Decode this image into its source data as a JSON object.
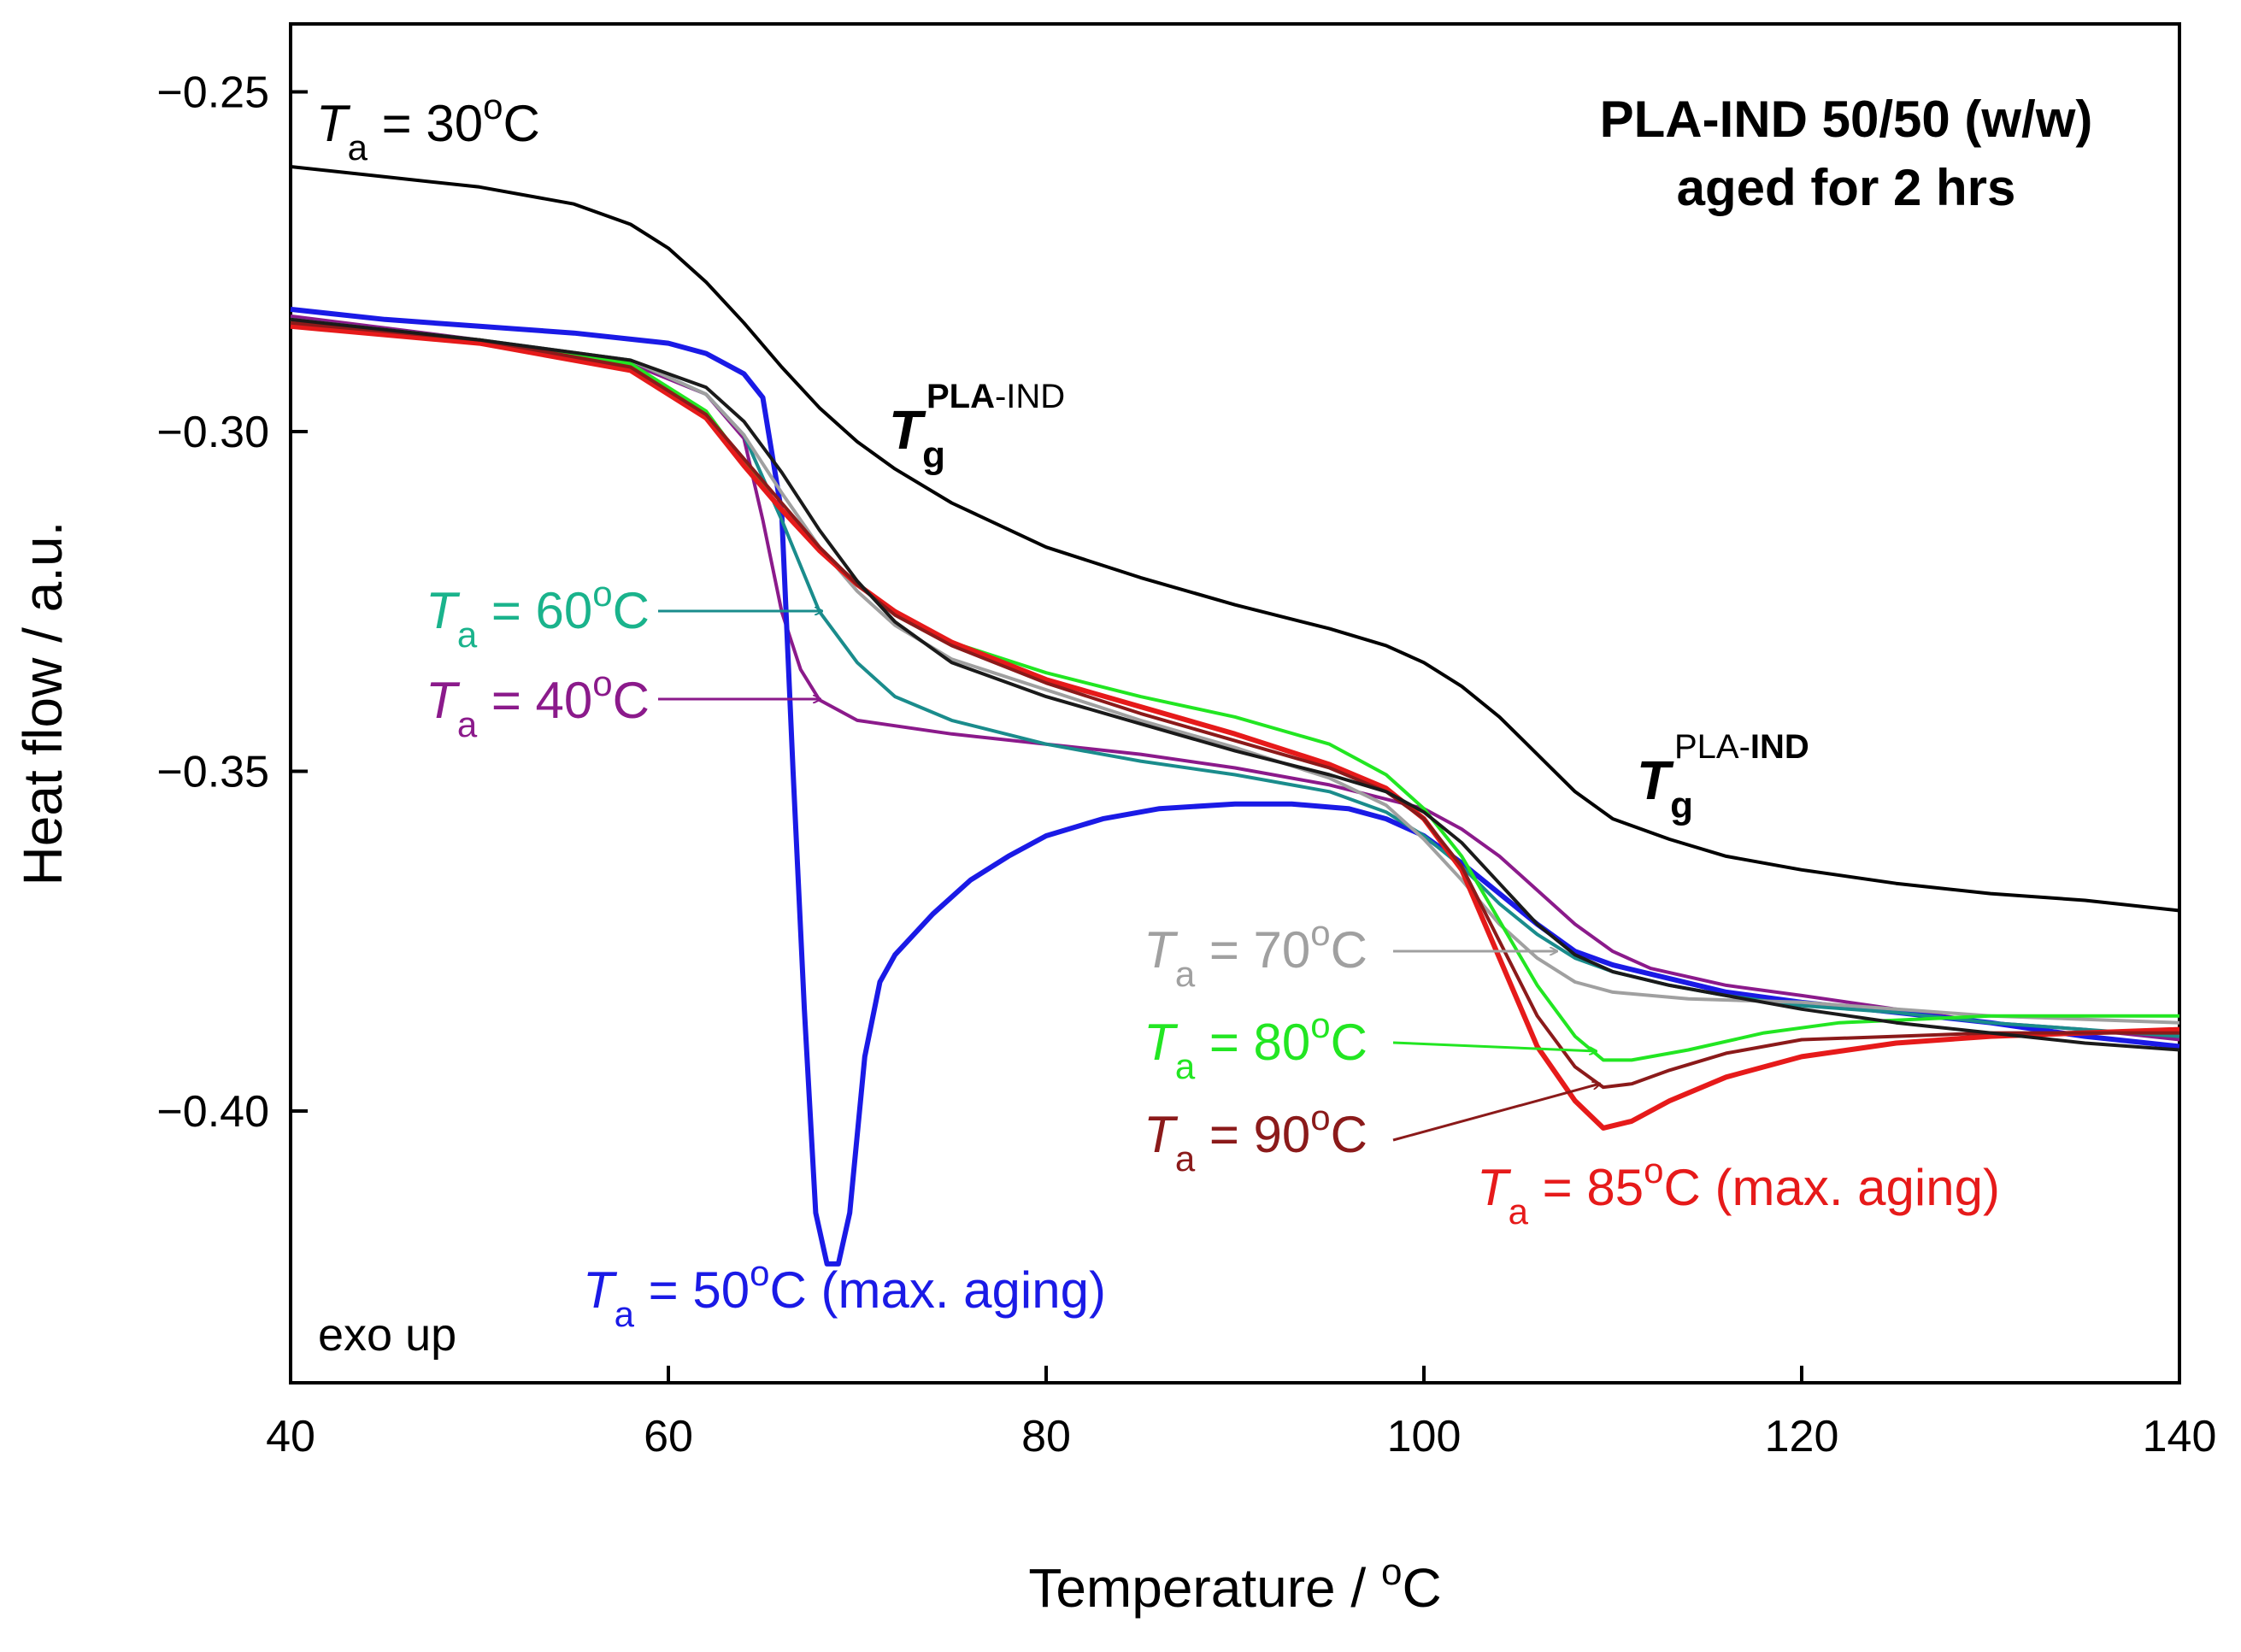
{
  "chart_data": {
    "type": "line",
    "title_lines": [
      "PLA-IND 50/50 (w/w)",
      "aged for 2 hrs"
    ],
    "xlabel": "Temperature / ",
    "xlabel_unit": "°C",
    "ylabel": "Heat flow / a.u.",
    "xlim": [
      40,
      140
    ],
    "ylim": [
      -0.44,
      -0.24
    ],
    "x_ticks": [
      40,
      60,
      80,
      100,
      120,
      140
    ],
    "x_tick_labels": [
      "40",
      "60",
      "80",
      "100",
      "120",
      "140"
    ],
    "y_ticks": [
      -0.25,
      -0.3,
      -0.35,
      -0.4
    ],
    "y_tick_labels": [
      "−0.25",
      "−0.30",
      "−0.35",
      "−0.40"
    ],
    "grid": false,
    "exo_note": "exo up",
    "tg_labels": [
      {
        "base": "T",
        "sub": "g",
        "sup_bold": "PLA",
        "sup_normal": "-IND"
      },
      {
        "base": "T",
        "sub": "g",
        "sup_normal": "PLA-",
        "sup_bold": "IND"
      }
    ],
    "series": [
      {
        "label": "Ta = 30oC",
        "color": "#000000",
        "points": [
          [
            40,
            -0.261
          ],
          [
            45,
            -0.2625
          ],
          [
            50,
            -0.264
          ],
          [
            55,
            -0.2665
          ],
          [
            58,
            -0.2695
          ],
          [
            60,
            -0.273
          ],
          [
            62,
            -0.278
          ],
          [
            64,
            -0.284
          ],
          [
            66,
            -0.2905
          ],
          [
            68,
            -0.2965
          ],
          [
            70,
            -0.3015
          ],
          [
            72,
            -0.3055
          ],
          [
            75,
            -0.3105
          ],
          [
            80,
            -0.317
          ],
          [
            85,
            -0.3215
          ],
          [
            90,
            -0.3255
          ],
          [
            95,
            -0.329
          ],
          [
            98,
            -0.3315
          ],
          [
            100,
            -0.334
          ],
          [
            102,
            -0.3375
          ],
          [
            104,
            -0.342
          ],
          [
            106,
            -0.3475
          ],
          [
            108,
            -0.353
          ],
          [
            110,
            -0.357
          ],
          [
            113,
            -0.36
          ],
          [
            116,
            -0.3625
          ],
          [
            120,
            -0.3645
          ],
          [
            125,
            -0.3665
          ],
          [
            130,
            -0.368
          ],
          [
            135,
            -0.369
          ],
          [
            140,
            -0.3705
          ]
        ]
      },
      {
        "label": "Ta = 40oC",
        "color": "#8b1a8b",
        "points": [
          [
            40,
            -0.283
          ],
          [
            50,
            -0.2865
          ],
          [
            58,
            -0.29
          ],
          [
            62,
            -0.2945
          ],
          [
            64,
            -0.301
          ],
          [
            65,
            -0.313
          ],
          [
            66,
            -0.3265
          ],
          [
            67,
            -0.335
          ],
          [
            68,
            -0.3395
          ],
          [
            70,
            -0.3425
          ],
          [
            75,
            -0.3445
          ],
          [
            80,
            -0.346
          ],
          [
            85,
            -0.3475
          ],
          [
            90,
            -0.3495
          ],
          [
            95,
            -0.352
          ],
          [
            100,
            -0.3555
          ],
          [
            102,
            -0.3585
          ],
          [
            104,
            -0.3625
          ],
          [
            106,
            -0.3675
          ],
          [
            108,
            -0.3725
          ],
          [
            110,
            -0.3765
          ],
          [
            112,
            -0.379
          ],
          [
            116,
            -0.3815
          ],
          [
            120,
            -0.383
          ],
          [
            125,
            -0.385
          ],
          [
            130,
            -0.387
          ],
          [
            135,
            -0.388
          ],
          [
            140,
            -0.3895
          ]
        ]
      },
      {
        "label": "Ta = 50oC (max. aging)",
        "color": "#1a1ae6",
        "points": [
          [
            40,
            -0.282
          ],
          [
            45,
            -0.2835
          ],
          [
            50,
            -0.2845
          ],
          [
            55,
            -0.2855
          ],
          [
            60,
            -0.287
          ],
          [
            62,
            -0.2885
          ],
          [
            64,
            -0.2915
          ],
          [
            65,
            -0.295
          ],
          [
            66,
            -0.312
          ],
          [
            66.6,
            -0.35
          ],
          [
            67.2,
            -0.385
          ],
          [
            67.8,
            -0.415
          ],
          [
            68.4,
            -0.4225
          ],
          [
            69,
            -0.4225
          ],
          [
            69.6,
            -0.415
          ],
          [
            70.4,
            -0.392
          ],
          [
            71.2,
            -0.381
          ],
          [
            72,
            -0.377
          ],
          [
            74,
            -0.371
          ],
          [
            76,
            -0.366
          ],
          [
            78,
            -0.3625
          ],
          [
            80,
            -0.3595
          ],
          [
            83,
            -0.357
          ],
          [
            86,
            -0.3555
          ],
          [
            90,
            -0.3548
          ],
          [
            93,
            -0.3548
          ],
          [
            96,
            -0.3555
          ],
          [
            98,
            -0.357
          ],
          [
            100,
            -0.3595
          ],
          [
            102,
            -0.3635
          ],
          [
            104,
            -0.368
          ],
          [
            106,
            -0.3725
          ],
          [
            108,
            -0.3765
          ],
          [
            110,
            -0.3785
          ],
          [
            113,
            -0.3805
          ],
          [
            116,
            -0.3825
          ],
          [
            120,
            -0.384
          ],
          [
            125,
            -0.3855
          ],
          [
            130,
            -0.387
          ],
          [
            135,
            -0.389
          ],
          [
            140,
            -0.3905
          ]
        ]
      },
      {
        "label": "Ta = 60oC",
        "color": "#1a8c8c",
        "points": [
          [
            40,
            -0.2835
          ],
          [
            50,
            -0.2865
          ],
          [
            58,
            -0.2895
          ],
          [
            62,
            -0.2945
          ],
          [
            64,
            -0.3005
          ],
          [
            66,
            -0.313
          ],
          [
            68,
            -0.3265
          ],
          [
            70,
            -0.334
          ],
          [
            72,
            -0.339
          ],
          [
            75,
            -0.3425
          ],
          [
            80,
            -0.346
          ],
          [
            85,
            -0.3485
          ],
          [
            90,
            -0.3505
          ],
          [
            95,
            -0.353
          ],
          [
            98,
            -0.356
          ],
          [
            100,
            -0.3595
          ],
          [
            102,
            -0.364
          ],
          [
            104,
            -0.3695
          ],
          [
            106,
            -0.374
          ],
          [
            108,
            -0.3775
          ],
          [
            110,
            -0.3795
          ],
          [
            113,
            -0.3815
          ],
          [
            116,
            -0.383
          ],
          [
            120,
            -0.3845
          ],
          [
            125,
            -0.3855
          ],
          [
            130,
            -0.387
          ],
          [
            135,
            -0.388
          ],
          [
            140,
            -0.389
          ]
        ]
      },
      {
        "label": "Ta = 70oC",
        "color": "#a0a0a0",
        "points": [
          [
            40,
            -0.2835
          ],
          [
            50,
            -0.2865
          ],
          [
            58,
            -0.2895
          ],
          [
            62,
            -0.2945
          ],
          [
            64,
            -0.3005
          ],
          [
            66,
            -0.309
          ],
          [
            68,
            -0.317
          ],
          [
            70,
            -0.3235
          ],
          [
            72,
            -0.3285
          ],
          [
            75,
            -0.3335
          ],
          [
            80,
            -0.338
          ],
          [
            85,
            -0.3425
          ],
          [
            90,
            -0.3465
          ],
          [
            95,
            -0.351
          ],
          [
            98,
            -0.355
          ],
          [
            100,
            -0.36
          ],
          [
            102,
            -0.366
          ],
          [
            104,
            -0.3725
          ],
          [
            106,
            -0.3775
          ],
          [
            108,
            -0.381
          ],
          [
            110,
            -0.3825
          ],
          [
            114,
            -0.3835
          ],
          [
            120,
            -0.384
          ],
          [
            125,
            -0.385
          ],
          [
            130,
            -0.386
          ],
          [
            135,
            -0.3865
          ],
          [
            140,
            -0.387
          ]
        ]
      },
      {
        "label": "Ta = 80oC",
        "color": "#22e622",
        "points": [
          [
            40,
            -0.284
          ],
          [
            50,
            -0.2865
          ],
          [
            58,
            -0.29
          ],
          [
            62,
            -0.297
          ],
          [
            64,
            -0.3045
          ],
          [
            66,
            -0.3115
          ],
          [
            68,
            -0.3175
          ],
          [
            70,
            -0.3225
          ],
          [
            72,
            -0.3265
          ],
          [
            75,
            -0.331
          ],
          [
            80,
            -0.3355
          ],
          [
            85,
            -0.339
          ],
          [
            90,
            -0.342
          ],
          [
            95,
            -0.346
          ],
          [
            98,
            -0.3505
          ],
          [
            100,
            -0.3555
          ],
          [
            102,
            -0.3625
          ],
          [
            104,
            -0.372
          ],
          [
            106,
            -0.3815
          ],
          [
            108,
            -0.389
          ],
          [
            109.5,
            -0.3925
          ],
          [
            111,
            -0.3925
          ],
          [
            114,
            -0.391
          ],
          [
            118,
            -0.3885
          ],
          [
            122,
            -0.387
          ],
          [
            126,
            -0.3865
          ],
          [
            130,
            -0.386
          ],
          [
            135,
            -0.386
          ],
          [
            140,
            -0.386
          ]
        ]
      },
      {
        "label": "Ta = 85oC (max. aging)",
        "color": "#e61a1a",
        "points": [
          [
            40,
            -0.2845
          ],
          [
            50,
            -0.287
          ],
          [
            58,
            -0.291
          ],
          [
            62,
            -0.298
          ],
          [
            64,
            -0.305
          ],
          [
            66,
            -0.3115
          ],
          [
            68,
            -0.3175
          ],
          [
            70,
            -0.3225
          ],
          [
            72,
            -0.3265
          ],
          [
            75,
            -0.331
          ],
          [
            80,
            -0.3365
          ],
          [
            85,
            -0.3405
          ],
          [
            90,
            -0.3445
          ],
          [
            95,
            -0.349
          ],
          [
            98,
            -0.3525
          ],
          [
            100,
            -0.357
          ],
          [
            102,
            -0.3645
          ],
          [
            104,
            -0.3775
          ],
          [
            106,
            -0.3905
          ],
          [
            108,
            -0.3985
          ],
          [
            109.5,
            -0.4025
          ],
          [
            111,
            -0.4015
          ],
          [
            113,
            -0.3985
          ],
          [
            116,
            -0.395
          ],
          [
            120,
            -0.392
          ],
          [
            125,
            -0.39
          ],
          [
            130,
            -0.389
          ],
          [
            135,
            -0.3885
          ],
          [
            140,
            -0.388
          ]
        ]
      },
      {
        "label": "Ta = 90oC",
        "color": "#8b1a1a",
        "points": [
          [
            40,
            -0.284
          ],
          [
            50,
            -0.2865
          ],
          [
            58,
            -0.2905
          ],
          [
            62,
            -0.2975
          ],
          [
            64,
            -0.304
          ],
          [
            66,
            -0.3105
          ],
          [
            68,
            -0.317
          ],
          [
            70,
            -0.3225
          ],
          [
            72,
            -0.327
          ],
          [
            75,
            -0.3315
          ],
          [
            80,
            -0.337
          ],
          [
            85,
            -0.3415
          ],
          [
            90,
            -0.3455
          ],
          [
            95,
            -0.3495
          ],
          [
            98,
            -0.353
          ],
          [
            100,
            -0.357
          ],
          [
            102,
            -0.364
          ],
          [
            104,
            -0.375
          ],
          [
            106,
            -0.386
          ],
          [
            108,
            -0.3935
          ],
          [
            109.5,
            -0.3965
          ],
          [
            111,
            -0.396
          ],
          [
            113,
            -0.394
          ],
          [
            116,
            -0.3915
          ],
          [
            120,
            -0.3895
          ],
          [
            125,
            -0.389
          ],
          [
            130,
            -0.3885
          ],
          [
            135,
            -0.3885
          ],
          [
            140,
            -0.3885
          ]
        ]
      },
      {
        "label": "unlabeled",
        "color": "#1a1a1a",
        "points": [
          [
            40,
            -0.2835
          ],
          [
            50,
            -0.2865
          ],
          [
            58,
            -0.2895
          ],
          [
            62,
            -0.2935
          ],
          [
            64,
            -0.2985
          ],
          [
            66,
            -0.306
          ],
          [
            68,
            -0.3145
          ],
          [
            70,
            -0.322
          ],
          [
            72,
            -0.328
          ],
          [
            75,
            -0.334
          ],
          [
            80,
            -0.339
          ],
          [
            85,
            -0.343
          ],
          [
            90,
            -0.347
          ],
          [
            95,
            -0.3505
          ],
          [
            98,
            -0.353
          ],
          [
            100,
            -0.356
          ],
          [
            102,
            -0.3605
          ],
          [
            104,
            -0.3665
          ],
          [
            106,
            -0.3725
          ],
          [
            108,
            -0.377
          ],
          [
            110,
            -0.3795
          ],
          [
            113,
            -0.3815
          ],
          [
            116,
            -0.383
          ],
          [
            120,
            -0.385
          ],
          [
            125,
            -0.387
          ],
          [
            130,
            -0.3885
          ],
          [
            135,
            -0.39
          ],
          [
            140,
            -0.391
          ]
        ]
      }
    ],
    "annotations": [
      {
        "prefix": "T",
        "sub": "a",
        "text": " = 30",
        "sup": "o",
        "suffix": "C",
        "color": "#000000"
      },
      {
        "prefix": "T",
        "sub": "a",
        "text": " = 60",
        "sup": "o",
        "suffix": "C",
        "color": "#1ab38c"
      },
      {
        "prefix": "T",
        "sub": "a",
        "text": " = 40",
        "sup": "o",
        "suffix": "C",
        "color": "#8b1a8b"
      },
      {
        "prefix": "T",
        "sub": "a",
        "text": " = 50",
        "sup": "o",
        "suffix": "C (max. aging)",
        "color": "#1a1ae6"
      },
      {
        "prefix": "T",
        "sub": "a",
        "text": " = 70",
        "sup": "o",
        "suffix": "C",
        "color": "#a0a0a0"
      },
      {
        "prefix": "T",
        "sub": "a",
        "text": " = 80",
        "sup": "o",
        "suffix": "C",
        "color": "#22e622"
      },
      {
        "prefix": "T",
        "sub": "a",
        "text": " = 90",
        "sup": "o",
        "suffix": "C",
        "color": "#8b1a1a"
      },
      {
        "prefix": "T",
        "sub": "a",
        "text": " = 85",
        "sup": "o",
        "suffix": "C (max. aging)",
        "color": "#e61a1a"
      }
    ]
  }
}
